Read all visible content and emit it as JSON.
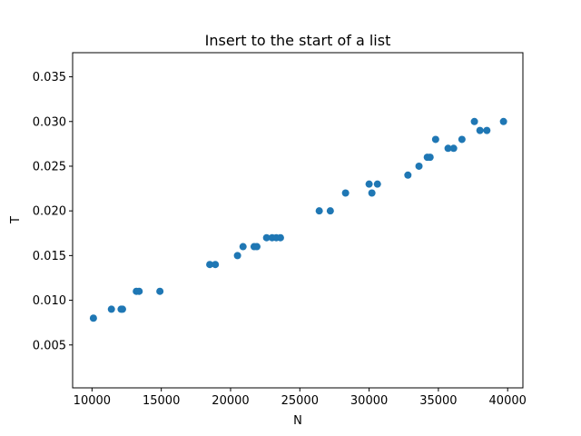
{
  "chart_data": {
    "type": "scatter",
    "title": "Insert to the start of a list",
    "xlabel": "N",
    "ylabel": "T",
    "xlim": [
      8600,
      41100
    ],
    "ylim": [
      0.0002,
      0.0377
    ],
    "xticks": [
      10000,
      15000,
      20000,
      25000,
      30000,
      35000,
      40000
    ],
    "xtick_labels": [
      "10000",
      "15000",
      "20000",
      "25000",
      "30000",
      "35000",
      "40000"
    ],
    "yticks": [
      0.005,
      0.01,
      0.015,
      0.02,
      0.025,
      0.03,
      0.035
    ],
    "ytick_labels": [
      "0.005",
      "0.010",
      "0.015",
      "0.020",
      "0.025",
      "0.030",
      "0.035"
    ],
    "grid": false,
    "marker_color": "#1f77b4",
    "series": [
      {
        "x": [
          10100,
          11400,
          12100,
          12200,
          13200,
          13400,
          14900,
          18500,
          18900,
          20500,
          20900,
          21700,
          21900,
          22600,
          23000,
          23300,
          23600,
          26400,
          27200,
          28300,
          30000,
          30200,
          30600,
          32800,
          33600,
          34200,
          34400,
          34800,
          35700,
          36100,
          36700,
          37600,
          38000,
          38500,
          39700
        ],
        "y": [
          0.008,
          0.009,
          0.009,
          0.009,
          0.011,
          0.011,
          0.011,
          0.014,
          0.014,
          0.015,
          0.016,
          0.016,
          0.016,
          0.017,
          0.017,
          0.017,
          0.017,
          0.02,
          0.02,
          0.022,
          0.023,
          0.022,
          0.023,
          0.024,
          0.025,
          0.026,
          0.026,
          0.028,
          0.027,
          0.027,
          0.028,
          0.03,
          0.029,
          0.029,
          0.03
        ]
      }
    ]
  }
}
